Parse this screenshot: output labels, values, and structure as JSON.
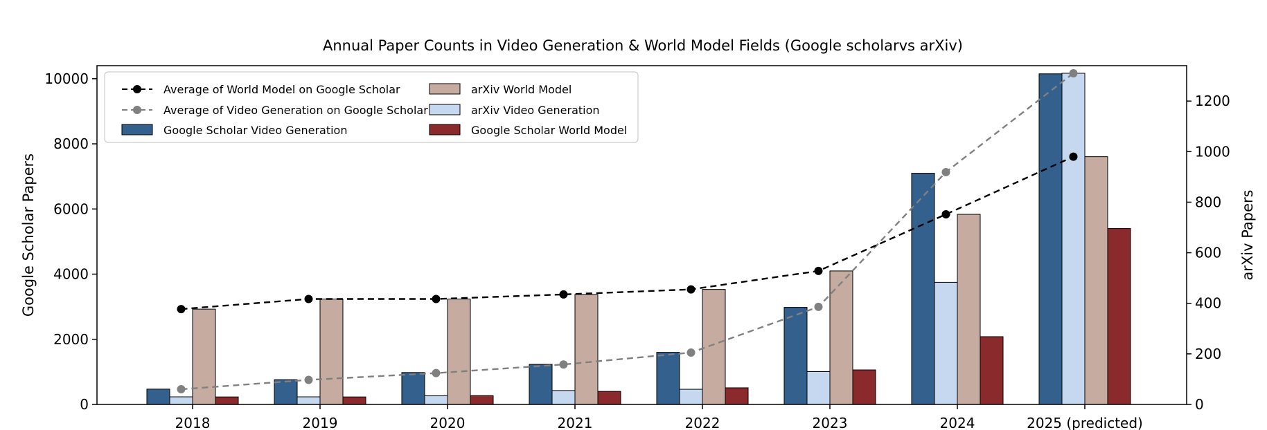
{
  "chart_data": {
    "type": "bar",
    "title": "Annual Paper Counts in Video Generation & World Model Fields (Google scholarvs arXiv)",
    "categories": [
      "2018",
      "2019",
      "2020",
      "2021",
      "2022",
      "2023",
      "2024",
      "2025 (predicted)"
    ],
    "ylabel": "Google Scholar Papers",
    "y2label": "arXiv Papers",
    "ylim": [
      0,
      10400
    ],
    "y2lim": [
      0,
      1340
    ],
    "yticks": [
      0,
      2000,
      4000,
      6000,
      8000,
      10000
    ],
    "y2ticks": [
      0,
      200,
      400,
      600,
      800,
      1000,
      1200
    ],
    "series": [
      {
        "name": "Google Scholar Video Generation",
        "kind": "bar",
        "axis": "left",
        "color": "#34608e",
        "values": [
          470,
          760,
          980,
          1230,
          1600,
          2980,
          7100,
          10150
        ]
      },
      {
        "name": "arXiv Video Generation",
        "kind": "bar",
        "axis": "right",
        "color": "#c5d8f0",
        "values": [
          30,
          30,
          34,
          55,
          60,
          130,
          483,
          1310
        ]
      },
      {
        "name": "arXiv World Model",
        "kind": "bar",
        "axis": "right",
        "color": "#c6aba0",
        "values": [
          377,
          417,
          417,
          435,
          455,
          528,
          752,
          980
        ]
      },
      {
        "name": "Google Scholar World Model",
        "kind": "bar",
        "axis": "left",
        "color": "#8b2a2d",
        "values": [
          230,
          230,
          270,
          400,
          510,
          1060,
          2080,
          5400
        ]
      },
      {
        "name": "Average of World Model on Google Scholar",
        "kind": "line",
        "axis": "right",
        "color": "#000000",
        "values": [
          377,
          417,
          417,
          435,
          455,
          528,
          752,
          980
        ]
      },
      {
        "name": "Average of Video Generation on Google Scholar",
        "kind": "line",
        "axis": "right",
        "color": "#808080",
        "values": [
          60,
          97,
          124,
          158,
          205,
          386,
          919,
          1310
        ]
      }
    ],
    "legend": {
      "placement": "top-left",
      "entries": [
        "Average of World Model on Google Scholar",
        "Average of Video Generation on Google Scholar",
        "Google Scholar Video Generation",
        "arXiv World Model",
        "arXiv Video Generation",
        "Google Scholar World Model"
      ]
    }
  }
}
